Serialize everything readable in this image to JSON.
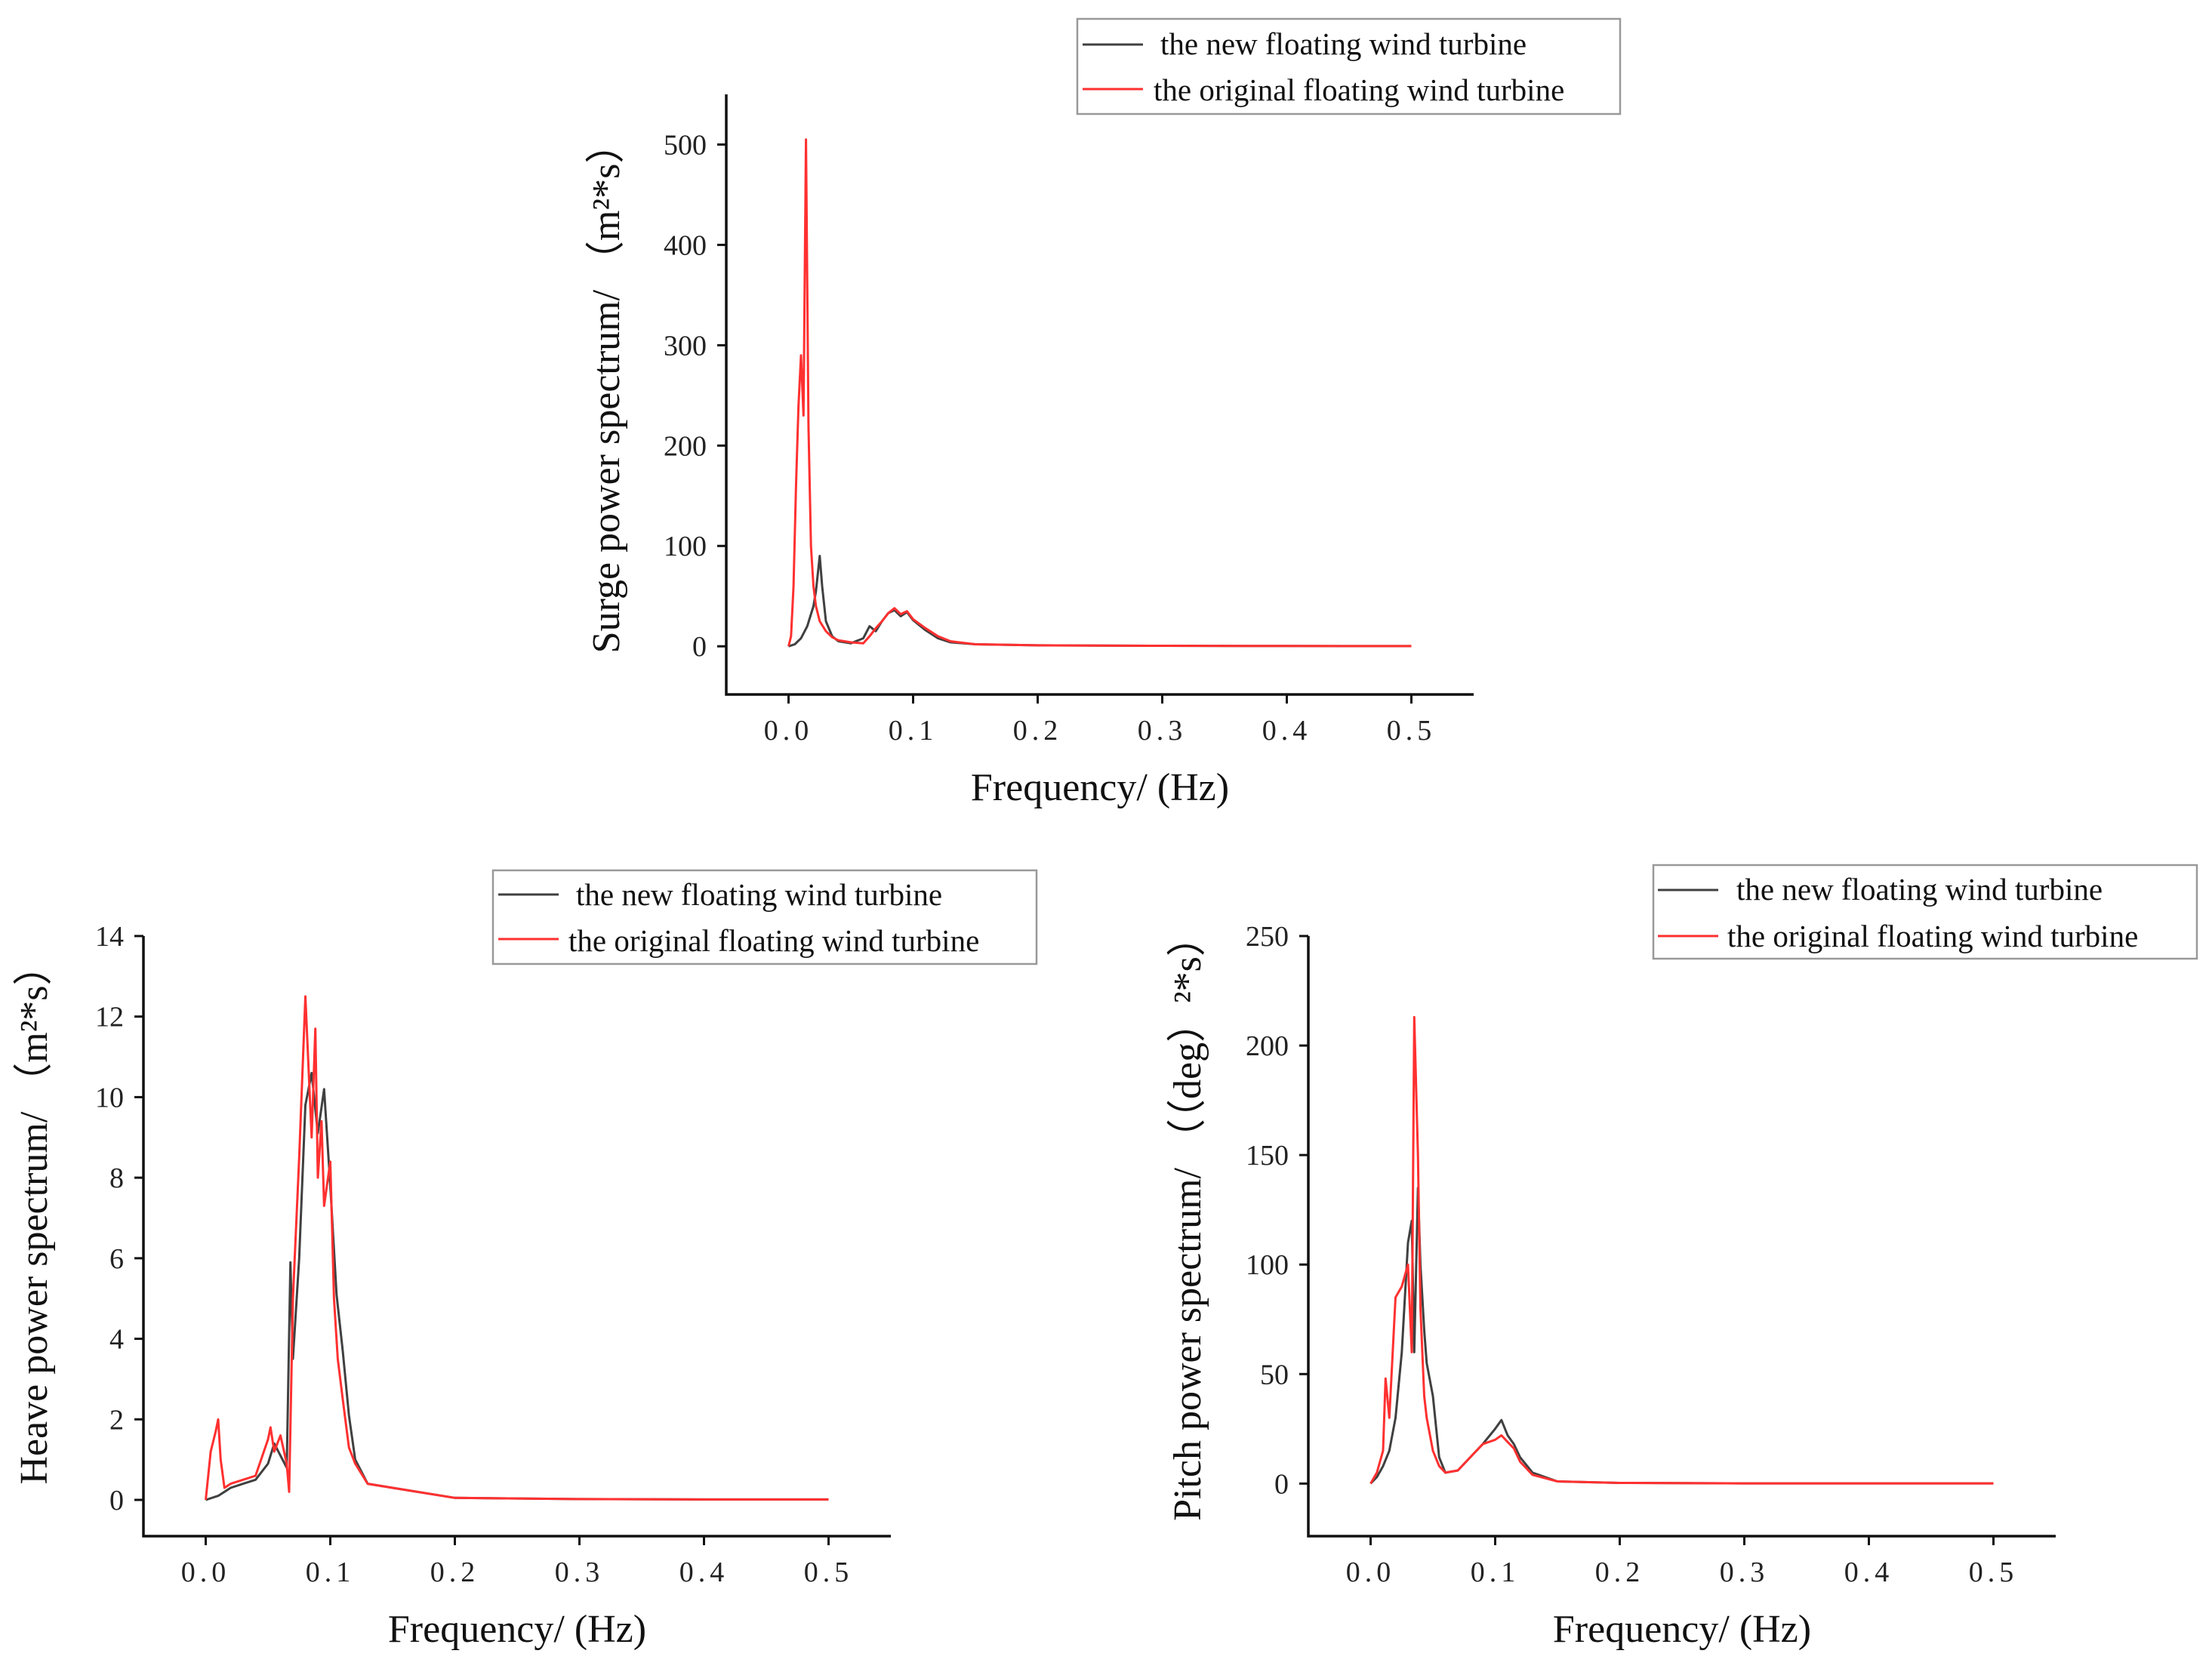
{
  "chart_data": [
    {
      "id": "surge",
      "type": "line",
      "title": "",
      "xlabel": "Frequency/ (Hz)",
      "ylabel": "Surge power spectrum/ （m²*s）",
      "xlim": [
        -0.05,
        0.55
      ],
      "ylim": [
        -48,
        550
      ],
      "x_ticks": [
        0.0,
        0.1,
        0.2,
        0.3,
        0.4,
        0.5
      ],
      "x_tick_labels": [
        "0.0",
        "0.1",
        "0.2",
        "0.3",
        "0.4",
        "0.5"
      ],
      "y_ticks": [
        0,
        100,
        200,
        300,
        400,
        500
      ],
      "y_tick_labels": [
        "0",
        "100",
        "200",
        "300",
        "400",
        "500"
      ],
      "legend": "top-right",
      "series": [
        {
          "name": "the new floating wind turbine",
          "color": "#404040",
          "x": [
            0.0,
            0.005,
            0.01,
            0.015,
            0.02,
            0.022,
            0.025,
            0.027,
            0.03,
            0.035,
            0.04,
            0.05,
            0.06,
            0.065,
            0.07,
            0.075,
            0.08,
            0.085,
            0.09,
            0.095,
            0.1,
            0.11,
            0.12,
            0.13,
            0.15,
            0.2,
            0.3,
            0.4,
            0.5
          ],
          "values": [
            0,
            2,
            8,
            20,
            40,
            55,
            90,
            60,
            25,
            10,
            5,
            3,
            8,
            20,
            15,
            25,
            33,
            36,
            30,
            34,
            26,
            16,
            8,
            4,
            2,
            1,
            0.5,
            0.3,
            0.2
          ]
        },
        {
          "name": "the original floating wind turbine",
          "color": "#ff3030",
          "x": [
            0.0,
            0.002,
            0.004,
            0.006,
            0.008,
            0.01,
            0.012,
            0.014,
            0.016,
            0.018,
            0.02,
            0.022,
            0.025,
            0.03,
            0.035,
            0.04,
            0.05,
            0.06,
            0.065,
            0.07,
            0.075,
            0.08,
            0.085,
            0.09,
            0.095,
            0.1,
            0.11,
            0.12,
            0.13,
            0.15,
            0.2,
            0.3,
            0.4,
            0.5
          ],
          "values": [
            0,
            10,
            60,
            160,
            240,
            290,
            230,
            505,
            220,
            100,
            60,
            40,
            25,
            15,
            9,
            6,
            4,
            3,
            10,
            18,
            25,
            33,
            38,
            32,
            35,
            27,
            18,
            10,
            5,
            2,
            1,
            0.5,
            0.3,
            0.2
          ]
        }
      ]
    },
    {
      "id": "heave",
      "type": "line",
      "title": "",
      "xlabel": "Frequency/ (Hz)",
      "ylabel": "Heave power spectrum/ （m²*s）",
      "xlim": [
        -0.05,
        0.55
      ],
      "ylim": [
        -0.9,
        14
      ],
      "x_ticks": [
        0.0,
        0.1,
        0.2,
        0.3,
        0.4,
        0.5
      ],
      "x_tick_labels": [
        "0.0",
        "0.1",
        "0.2",
        "0.3",
        "0.4",
        "0.5"
      ],
      "y_ticks": [
        0,
        2,
        4,
        6,
        8,
        10,
        12,
        14
      ],
      "y_tick_labels": [
        "0",
        "2",
        "4",
        "6",
        "8",
        "10",
        "12",
        "14"
      ],
      "legend": "top-right",
      "series": [
        {
          "name": "the new floating wind turbine",
          "color": "#404040",
          "x": [
            0.0,
            0.01,
            0.015,
            0.02,
            0.03,
            0.04,
            0.05,
            0.055,
            0.06,
            0.065,
            0.068,
            0.07,
            0.075,
            0.08,
            0.085,
            0.09,
            0.095,
            0.1,
            0.105,
            0.11,
            0.115,
            0.12,
            0.13,
            0.15,
            0.2,
            0.3,
            0.4,
            0.5
          ],
          "values": [
            0,
            0.1,
            0.2,
            0.3,
            0.4,
            0.5,
            0.9,
            1.4,
            1.1,
            0.8,
            5.9,
            3.5,
            6.0,
            9.8,
            10.6,
            9.1,
            10.2,
            7.8,
            5.1,
            3.7,
            2.1,
            1.0,
            0.4,
            0.3,
            0.05,
            0.02,
            0.01,
            0.01
          ]
        },
        {
          "name": "the original floating wind turbine",
          "color": "#ff3030",
          "x": [
            0.0,
            0.004,
            0.008,
            0.01,
            0.012,
            0.015,
            0.02,
            0.03,
            0.04,
            0.05,
            0.052,
            0.055,
            0.06,
            0.065,
            0.067,
            0.07,
            0.075,
            0.08,
            0.085,
            0.088,
            0.09,
            0.093,
            0.095,
            0.1,
            0.103,
            0.106,
            0.11,
            0.115,
            0.12,
            0.13,
            0.15,
            0.2,
            0.3,
            0.4,
            0.5
          ],
          "values": [
            0,
            1.2,
            1.7,
            2.0,
            1.0,
            0.3,
            0.4,
            0.5,
            0.6,
            1.5,
            1.8,
            1.2,
            1.6,
            0.9,
            0.2,
            5.0,
            8.5,
            12.5,
            9.0,
            11.7,
            8.0,
            9.4,
            7.3,
            8.4,
            5.0,
            3.5,
            2.5,
            1.3,
            0.9,
            0.4,
            0.3,
            0.05,
            0.02,
            0.01,
            0.01
          ]
        }
      ]
    },
    {
      "id": "pitch",
      "type": "line",
      "title": "",
      "xlabel": "Frequency/ (Hz)",
      "ylabel": "Pitch power spectrum/ （（deg）²*s）",
      "xlim": [
        -0.05,
        0.55
      ],
      "ylim": [
        -24,
        250
      ],
      "x_ticks": [
        0.0,
        0.1,
        0.2,
        0.3,
        0.4,
        0.5
      ],
      "x_tick_labels": [
        "0.0",
        "0.1",
        "0.2",
        "0.3",
        "0.4",
        "0.5"
      ],
      "y_ticks": [
        0,
        50,
        100,
        150,
        200,
        250
      ],
      "y_tick_labels": [
        "0",
        "50",
        "100",
        "150",
        "200",
        "250"
      ],
      "legend": "top-right",
      "series": [
        {
          "name": "the new floating wind turbine",
          "color": "#404040",
          "x": [
            0.0,
            0.005,
            0.01,
            0.015,
            0.02,
            0.025,
            0.03,
            0.033,
            0.035,
            0.038,
            0.04,
            0.043,
            0.045,
            0.05,
            0.055,
            0.06,
            0.07,
            0.08,
            0.09,
            0.1,
            0.105,
            0.11,
            0.115,
            0.12,
            0.13,
            0.15,
            0.2,
            0.3,
            0.4,
            0.5
          ],
          "values": [
            0,
            3,
            8,
            15,
            30,
            60,
            110,
            120,
            60,
            135,
            100,
            70,
            55,
            40,
            12,
            5,
            6,
            12,
            18,
            25,
            29,
            22,
            18,
            12,
            5,
            1,
            0.3,
            0.1,
            0.1,
            0.1
          ]
        },
        {
          "name": "the original floating wind turbine",
          "color": "#ff3030",
          "x": [
            0.0,
            0.005,
            0.01,
            0.012,
            0.015,
            0.02,
            0.025,
            0.03,
            0.033,
            0.035,
            0.038,
            0.04,
            0.043,
            0.045,
            0.05,
            0.055,
            0.06,
            0.07,
            0.08,
            0.09,
            0.1,
            0.105,
            0.11,
            0.115,
            0.12,
            0.13,
            0.15,
            0.2,
            0.3,
            0.4,
            0.5
          ],
          "values": [
            0,
            5,
            15,
            48,
            30,
            85,
            90,
            100,
            60,
            213,
            150,
            80,
            40,
            30,
            15,
            8,
            5,
            6,
            12,
            18,
            20,
            22,
            19,
            16,
            10,
            4,
            1,
            0.3,
            0.1,
            0.1,
            0.1
          ]
        }
      ]
    }
  ]
}
